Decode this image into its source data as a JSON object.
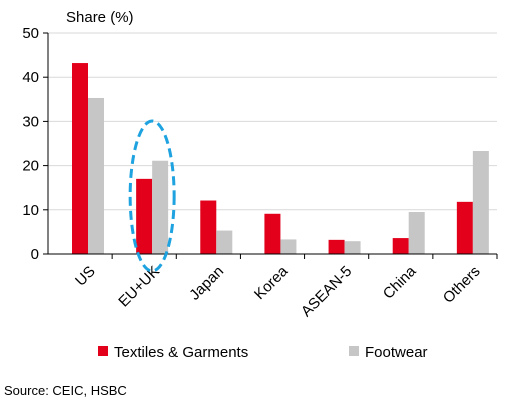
{
  "chart_data": {
    "type": "bar",
    "ylabel": "Share (%)",
    "ylim": [
      0,
      50
    ],
    "yticks": [
      0,
      10,
      20,
      30,
      40,
      50
    ],
    "categories": [
      "US",
      "EU+UK",
      "Japan",
      "Korea",
      "ASEAN-5",
      "China",
      "Others"
    ],
    "series": [
      {
        "name": "Textiles & Garments",
        "color": "#e2001a",
        "values": [
          43.2,
          17.0,
          12.1,
          9.1,
          3.2,
          3.6,
          11.8
        ]
      },
      {
        "name": "Footwear",
        "color": "#c6c6c6",
        "values": [
          35.3,
          21.1,
          5.3,
          3.3,
          2.9,
          9.5,
          23.3
        ]
      }
    ],
    "highlight": {
      "category": "EU+UK",
      "shape": "dashed-ellipse",
      "color": "#1ea3e0"
    },
    "grid": "horizontal",
    "legend_position": "bottom"
  },
  "source": "Source: CEIC, HSBC"
}
